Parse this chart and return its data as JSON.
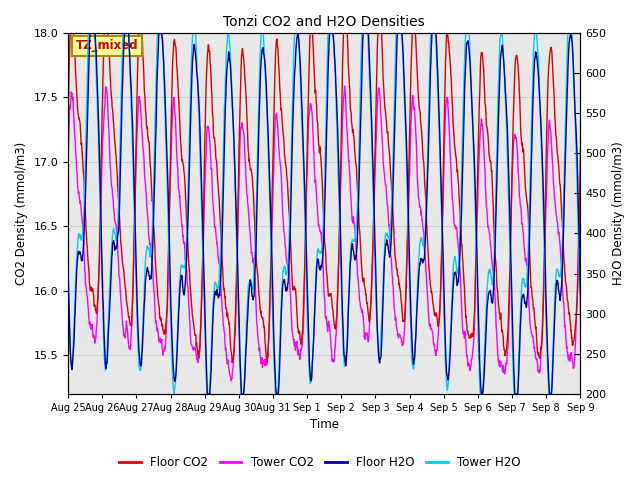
{
  "title": "Tonzi CO2 and H2O Densities",
  "xlabel": "Time",
  "ylabel_left": "CO2 Density (mmol/m3)",
  "ylabel_right": "H2O Density (mmol/m3)",
  "ylim_left": [
    15.2,
    18.0
  ],
  "ylim_right": [
    200,
    650
  ],
  "annotation_text": "TZ_mixed",
  "annotation_color": "#cc0000",
  "annotation_bg": "#ffff99",
  "annotation_border": "#aa8800",
  "colors": {
    "floor_co2": "#dd0000",
    "tower_co2": "#ff00ff",
    "floor_h2o": "#000099",
    "tower_h2o": "#00ccff"
  },
  "legend_labels": [
    "Floor CO2",
    "Tower CO2",
    "Floor H2O",
    "Tower H2O"
  ],
  "xtick_labels": [
    "Aug 25",
    "Aug 26",
    "Aug 27",
    "Aug 28",
    "Aug 29",
    "Aug 30",
    "Aug 31",
    "Sep 1",
    "Sep 2",
    "Sep 3",
    "Sep 4",
    "Sep 5",
    "Sep 6",
    "Sep 7",
    "Sep 8",
    "Sep 9"
  ],
  "grid_color": "#cccccc",
  "bg_color": "#e8e8e8",
  "linewidth": 1.0
}
